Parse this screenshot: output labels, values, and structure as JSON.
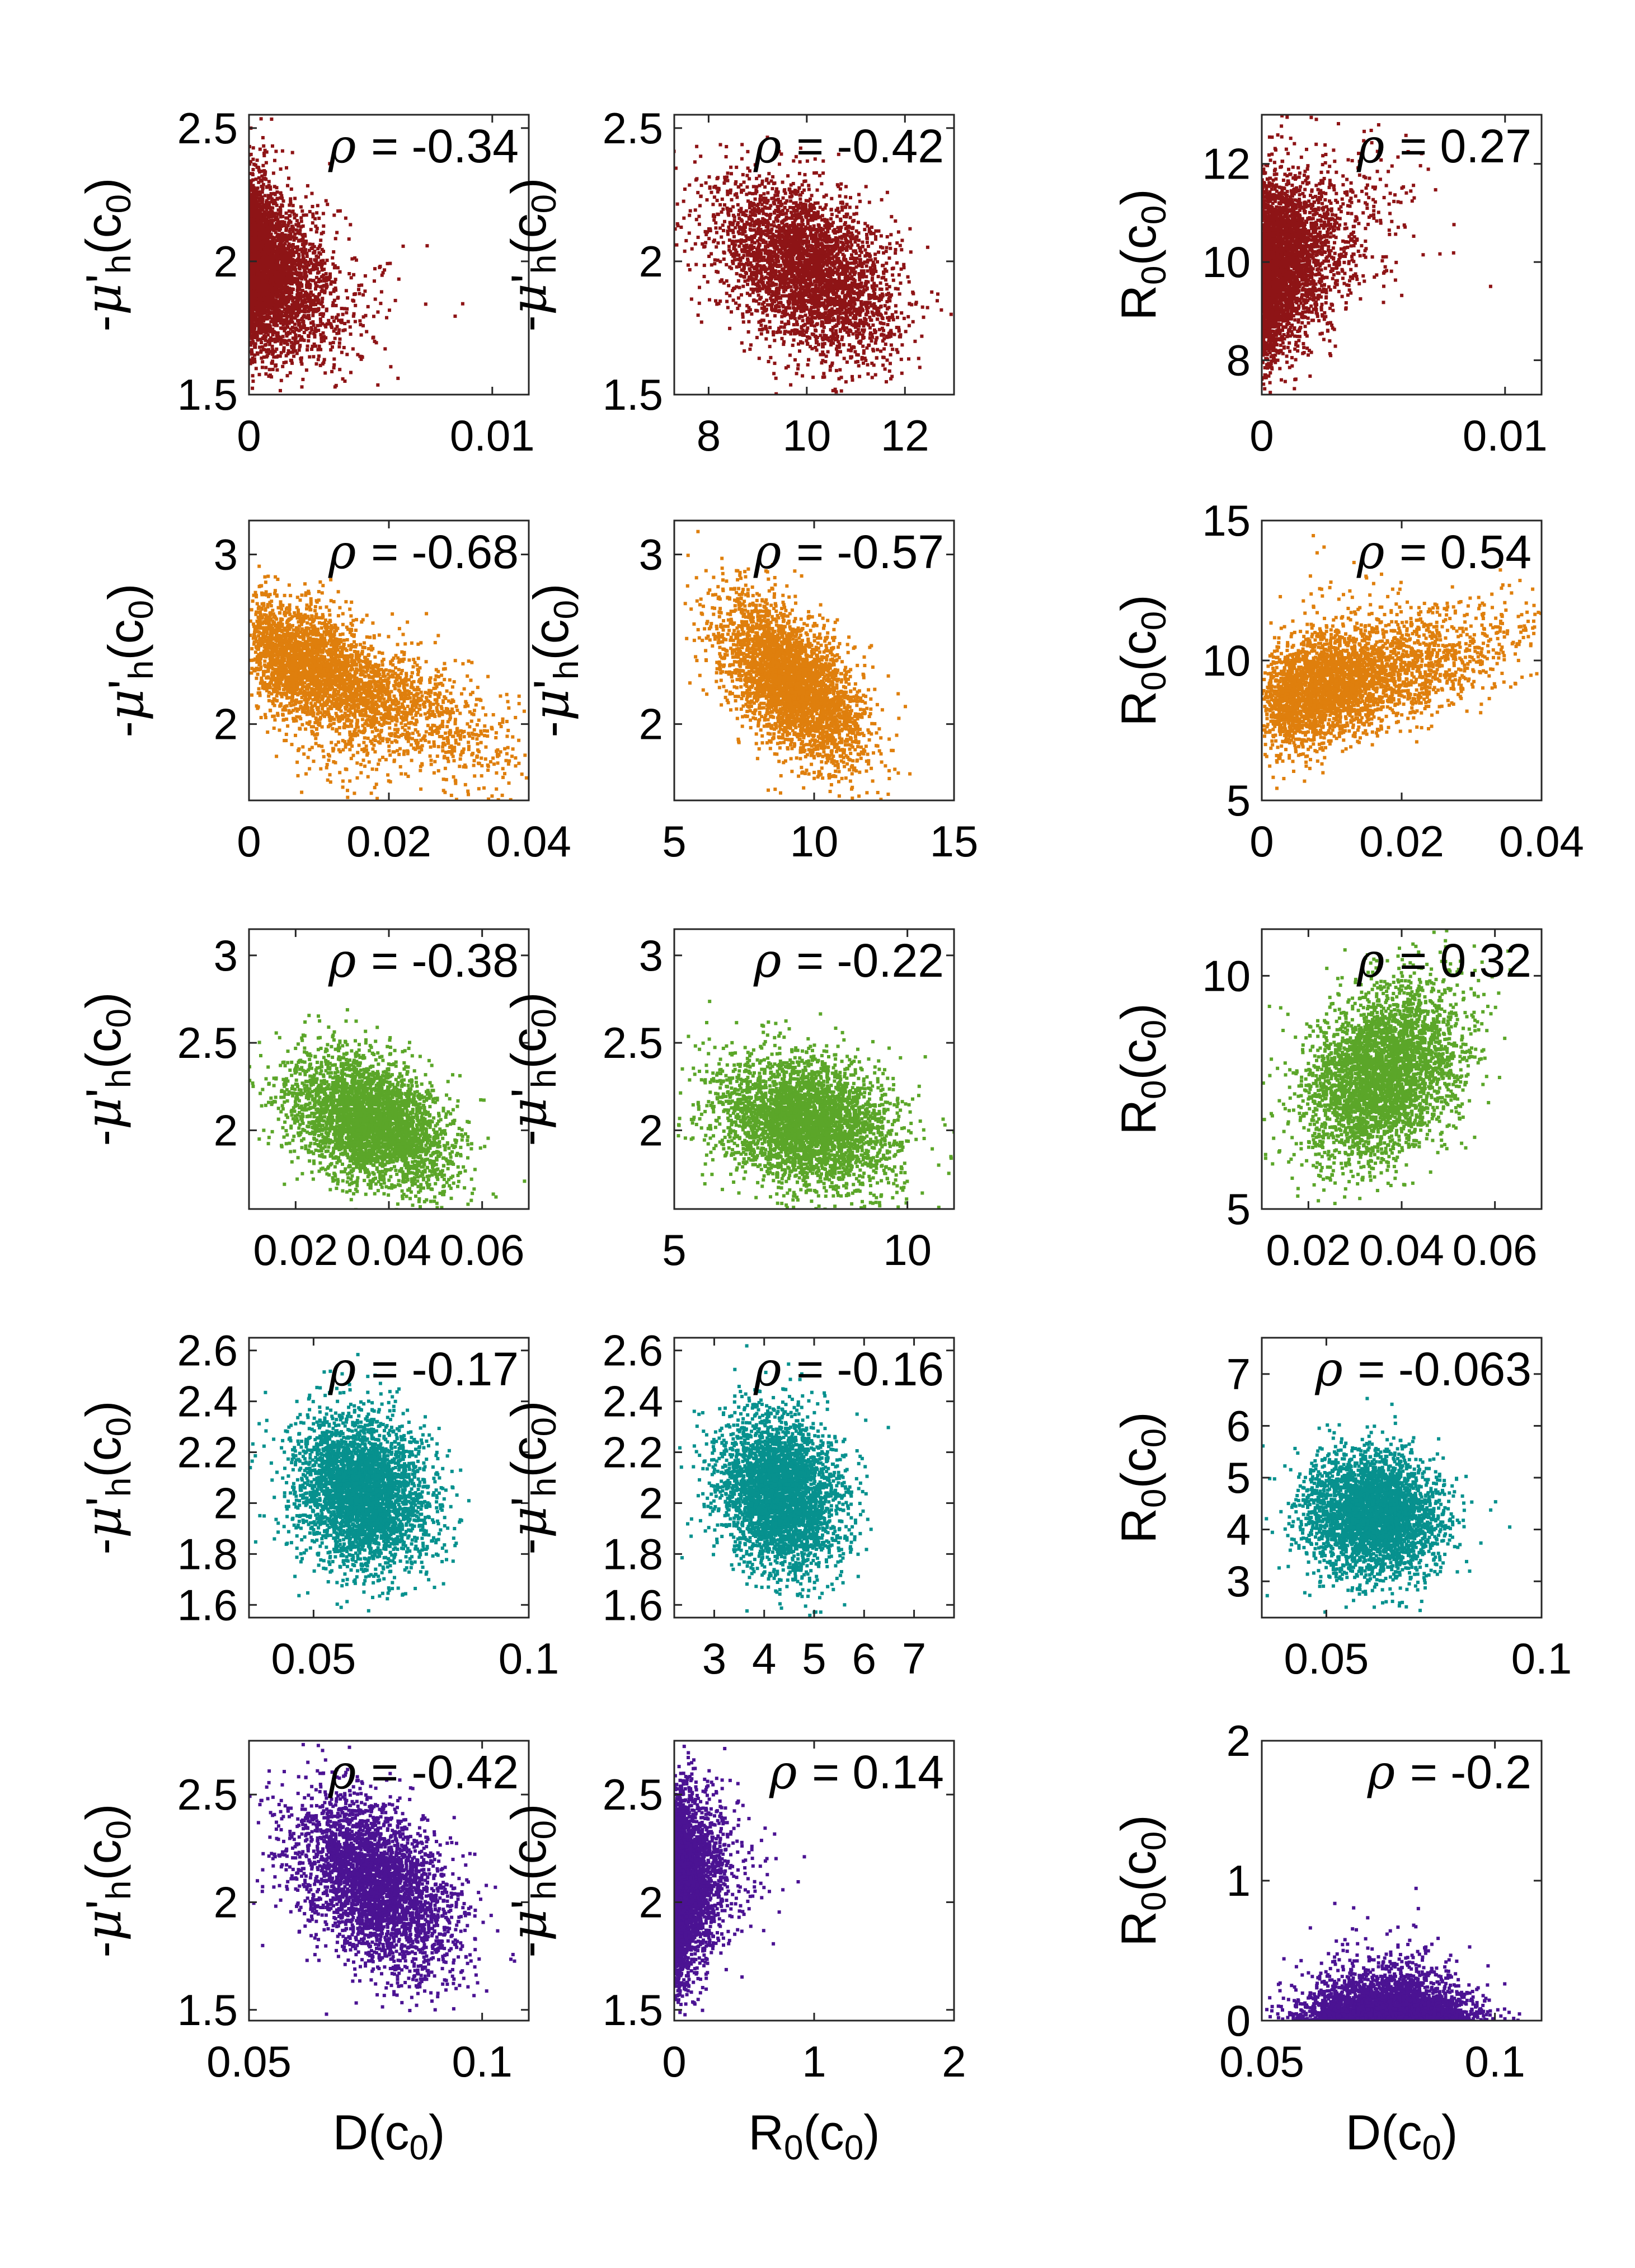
{
  "chart_data": {
    "type": "scatter",
    "layout": "5 rows x 3 columns grid of scatter plots",
    "rows": [
      {
        "color": "#8E1416",
        "panels": [
          {
            "x_label": "",
            "y_label": "-μ'h(c0)",
            "xlim": [
              0,
              0.0115
            ],
            "ylim": [
              1.5,
              2.55
            ],
            "xticks": [
              0,
              0.01
            ],
            "xtick_labels": [
              "0",
              "0.01"
            ],
            "yticks": [
              1.5,
              2,
              2.5
            ],
            "ytick_labels": [
              "1.5",
              "2",
              "2.5"
            ],
            "rho_text": "= -0.34",
            "dist": {
              "x_type": "exp",
              "x_base": 0,
              "x_scale": 0.0011,
              "x_cap": 0.0115,
              "y_mean": 1.96,
              "y_sd": 0.16,
              "corr": -0.34
            }
          },
          {
            "x_label": "",
            "y_label": "-μ'h(c0)",
            "xlim": [
              7.3,
              13.0
            ],
            "ylim": [
              1.5,
              2.55
            ],
            "xticks": [
              8,
              10,
              12
            ],
            "xtick_labels": [
              "8",
              "10",
              "12"
            ],
            "yticks": [
              1.5,
              2,
              2.5
            ],
            "ytick_labels": [
              "1.5",
              "2",
              "2.5"
            ],
            "rho_text": "= -0.42",
            "dist": {
              "x_type": "normal",
              "x_mean": 10.0,
              "x_sd": 0.9,
              "y_mean": 1.97,
              "y_sd": 0.16,
              "corr": -0.42
            }
          },
          {
            "x_label": "",
            "y_label": "R0(c0)",
            "xlim": [
              0,
              0.0115
            ],
            "ylim": [
              7.3,
              13.0
            ],
            "xticks": [
              0,
              0.01
            ],
            "xtick_labels": [
              "0",
              "0.01"
            ],
            "yticks": [
              8,
              10,
              12
            ],
            "ytick_labels": [
              "8",
              "10",
              "12"
            ],
            "rho_text": "= 0.27",
            "dist": {
              "x_type": "exp",
              "x_base": 0,
              "x_scale": 0.0011,
              "x_cap": 0.0115,
              "y_mean": 10.0,
              "y_sd": 0.9,
              "corr": 0.27
            }
          }
        ]
      },
      {
        "color": "#DF7F0D",
        "panels": [
          {
            "x_label": "",
            "y_label": "-μ'h(c0)",
            "xlim": [
              0,
              0.04
            ],
            "ylim": [
              1.55,
              3.2
            ],
            "xticks": [
              0,
              0.02,
              0.04
            ],
            "xtick_labels": [
              "0",
              "0.02",
              "0.04"
            ],
            "yticks": [
              2,
              3
            ],
            "ytick_labels": [
              "2",
              "3"
            ],
            "rho_text": "= -0.68",
            "dist": {
              "x_type": "gamma2",
              "x_base": 0,
              "x_scale": 0.0068,
              "x_cap": 0.04,
              "y_mean": 2.25,
              "y_sd": 0.24,
              "corr": -0.68
            }
          },
          {
            "x_label": "",
            "y_label": "-μ'h(c0)",
            "xlim": [
              5,
              15
            ],
            "ylim": [
              1.55,
              3.2
            ],
            "xticks": [
              5,
              10,
              15
            ],
            "xtick_labels": [
              "5",
              "10",
              "15"
            ],
            "yticks": [
              2,
              3
            ],
            "ytick_labels": [
              "2",
              "3"
            ],
            "rho_text": "= -0.57",
            "dist": {
              "x_type": "normal",
              "x_mean": 9.2,
              "x_sd": 1.25,
              "y_mean": 2.25,
              "y_sd": 0.24,
              "corr": -0.57
            }
          },
          {
            "x_label": "",
            "y_label": "R0(c0)",
            "xlim": [
              0,
              0.04
            ],
            "ylim": [
              5,
              15
            ],
            "xticks": [
              0,
              0.02,
              0.04
            ],
            "xtick_labels": [
              "0",
              "0.02",
              "0.04"
            ],
            "yticks": [
              5,
              10,
              15
            ],
            "ytick_labels": [
              "5",
              "10",
              "15"
            ],
            "rho_text": "= 0.54",
            "dist": {
              "x_type": "gamma2",
              "x_base": 0,
              "x_scale": 0.0068,
              "x_cap": 0.04,
              "y_mean": 9.3,
              "y_sd": 1.15,
              "corr": 0.54
            }
          }
        ]
      },
      {
        "color": "#5BA629",
        "panels": [
          {
            "x_label": "",
            "y_label": "-μ'h(c0)",
            "xlim": [
              0.01,
              0.07
            ],
            "ylim": [
              1.55,
              3.15
            ],
            "xticks": [
              0.02,
              0.04,
              0.06
            ],
            "xtick_labels": [
              "0.02",
              "0.04",
              "0.06"
            ],
            "yticks": [
              2,
              2.5,
              3
            ],
            "ytick_labels": [
              "2",
              "2.5",
              "3"
            ],
            "rho_text": "= -0.38",
            "dist": {
              "x_type": "normal",
              "x_mean": 0.036,
              "x_sd": 0.0085,
              "y_mean": 2.05,
              "y_sd": 0.19,
              "corr": -0.38
            }
          },
          {
            "x_label": "",
            "y_label": "-μ'h(c0)",
            "xlim": [
              5,
              11
            ],
            "ylim": [
              1.55,
              3.15
            ],
            "xticks": [
              5,
              10
            ],
            "xtick_labels": [
              "5",
              "10"
            ],
            "yticks": [
              2,
              2.5,
              3
            ],
            "ytick_labels": [
              "2",
              "2.5",
              "3"
            ],
            "rho_text": "= -0.22",
            "dist": {
              "x_type": "normal",
              "x_mean": 7.8,
              "x_sd": 0.95,
              "y_mean": 2.05,
              "y_sd": 0.19,
              "corr": -0.22
            }
          },
          {
            "x_label": "",
            "y_label": "R0(c0)",
            "xlim": [
              0.01,
              0.07
            ],
            "ylim": [
              5,
              11
            ],
            "xticks": [
              0.02,
              0.04,
              0.06
            ],
            "xtick_labels": [
              "0.02",
              "0.04",
              "0.06"
            ],
            "yticks": [
              5,
              10
            ],
            "ytick_labels": [
              "5",
              "10"
            ],
            "rho_text": "= 0.32",
            "dist": {
              "x_type": "normal",
              "x_mean": 0.036,
              "x_sd": 0.0085,
              "y_mean": 7.9,
              "y_sd": 0.95,
              "corr": 0.32
            }
          }
        ]
      },
      {
        "color": "#07918E",
        "panels": [
          {
            "x_label": "",
            "y_label": "-μ'h(c0)",
            "xlim": [
              0.035,
              0.1
            ],
            "ylim": [
              1.55,
              2.65
            ],
            "xticks": [
              0.05,
              0.1
            ],
            "xtick_labels": [
              "0.05",
              "0.1"
            ],
            "yticks": [
              1.6,
              1.8,
              2,
              2.2,
              2.4,
              2.6
            ],
            "ytick_labels": [
              "1.6",
              "1.8",
              "2",
              "2.2",
              "2.4",
              "2.6"
            ],
            "rho_text": "= -0.17",
            "dist": {
              "x_type": "normal",
              "x_mean": 0.061,
              "x_sd": 0.0078,
              "y_mean": 2.04,
              "y_sd": 0.15,
              "corr": -0.17
            }
          },
          {
            "x_label": "",
            "y_label": "-μ'h(c0)",
            "xlim": [
              2.2,
              7.8
            ],
            "ylim": [
              1.55,
              2.65
            ],
            "xticks": [
              3,
              4,
              5,
              6,
              7
            ],
            "xtick_labels": [
              "3",
              "4",
              "5",
              "6",
              "7"
            ],
            "yticks": [
              1.6,
              1.8,
              2,
              2.2,
              2.4,
              2.6
            ],
            "ytick_labels": [
              "1.6",
              "1.8",
              "2",
              "2.2",
              "2.4",
              "2.6"
            ],
            "rho_text": "= -0.16",
            "dist": {
              "x_type": "normal",
              "x_mean": 4.3,
              "x_sd": 0.6,
              "y_mean": 2.04,
              "y_sd": 0.15,
              "corr": -0.16
            }
          },
          {
            "x_label": "",
            "y_label": "R0(c0)",
            "xlim": [
              0.035,
              0.1
            ],
            "ylim": [
              2.3,
              7.7
            ],
            "xticks": [
              0.05,
              0.1
            ],
            "xtick_labels": [
              "0.05",
              "0.1"
            ],
            "yticks": [
              3,
              4,
              5,
              6,
              7
            ],
            "ytick_labels": [
              "3",
              "4",
              "5",
              "6",
              "7"
            ],
            "rho_text": "= -0.063",
            "dist": {
              "x_type": "normal",
              "x_mean": 0.061,
              "x_sd": 0.0078,
              "y_mean": 4.3,
              "y_sd": 0.6,
              "corr": -0.063
            }
          }
        ]
      },
      {
        "color": "#4B1393",
        "panels": [
          {
            "x_label": "D(c0)",
            "y_label": "-μ'h(c0)",
            "xlim": [
              0.05,
              0.11
            ],
            "ylim": [
              1.45,
              2.75
            ],
            "xticks": [
              0.05,
              0.1
            ],
            "xtick_labels": [
              "0.05",
              "0.1"
            ],
            "yticks": [
              1.5,
              2,
              2.5
            ],
            "ytick_labels": [
              "1.5",
              "2",
              "2.5"
            ],
            "rho_text": "= -0.42",
            "dist": {
              "x_type": "normal",
              "x_mean": 0.077,
              "x_sd": 0.0085,
              "y_mean": 2.08,
              "y_sd": 0.2,
              "corr": -0.42
            }
          },
          {
            "x_label": "R0(c0)",
            "y_label": "-μ'h(c0)",
            "xlim": [
              0,
              2
            ],
            "ylim": [
              1.45,
              2.75
            ],
            "xticks": [
              0,
              1,
              2
            ],
            "xtick_labels": [
              "0",
              "1",
              "2"
            ],
            "yticks": [
              1.5,
              2,
              2.5
            ],
            "ytick_labels": [
              "1.5",
              "2",
              "2.5"
            ],
            "rho_text": "= 0.14",
            "dist": {
              "x_type": "exp",
              "x_base": 0,
              "x_scale": 0.11,
              "x_cap": 1.05,
              "y_mean": 2.08,
              "y_sd": 0.2,
              "corr": 0.14
            }
          },
          {
            "x_label": "D(c0)",
            "y_label": "R0(c0)",
            "xlim": [
              0.05,
              0.11
            ],
            "ylim": [
              0,
              2
            ],
            "xticks": [
              0.05,
              0.1
            ],
            "xtick_labels": [
              "0.05",
              "0.1"
            ],
            "yticks": [
              0,
              1,
              2
            ],
            "ytick_labels": [
              "0",
              "1",
              "2"
            ],
            "rho_text": "= -0.2",
            "dist": {
              "x_type": "normal",
              "x_mean": 0.077,
              "x_sd": 0.0085,
              "y_type": "exp",
              "y_scale": 0.11,
              "y_cap": 1.05,
              "corr": -0.2
            }
          }
        ]
      }
    ]
  }
}
